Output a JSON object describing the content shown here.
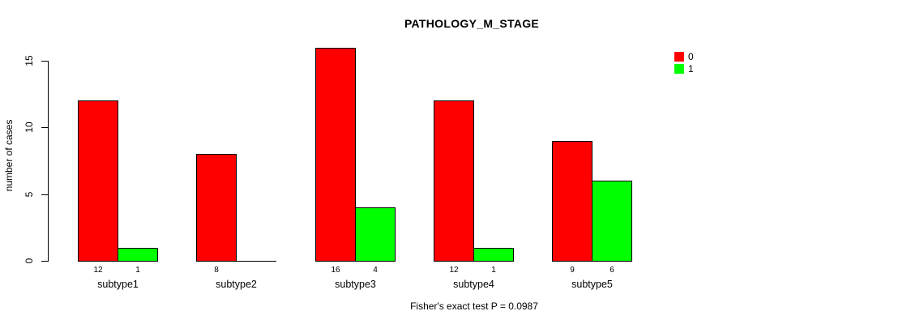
{
  "title": "PATHOLOGY_M_STAGE",
  "ylabel": "number of cases",
  "footer_note": "Fisher's exact test P = 0.0987",
  "colors": {
    "series0": "#FF0000",
    "series1": "#00FF00",
    "axis": "#000000",
    "background": "#FFFFFF"
  },
  "legend": {
    "items": [
      {
        "label": "0",
        "color": "#FF0000"
      },
      {
        "label": "1",
        "color": "#00FF00"
      }
    ]
  },
  "chart_data": {
    "type": "bar",
    "title": "PATHOLOGY_M_STAGE",
    "categories": [
      "subtype1",
      "subtype2",
      "subtype3",
      "subtype4",
      "subtype5"
    ],
    "series": [
      {
        "name": "0",
        "color": "#FF0000",
        "values": [
          12,
          8,
          16,
          12,
          9
        ]
      },
      {
        "name": "1",
        "color": "#00FF00",
        "values": [
          1,
          0,
          4,
          1,
          6
        ]
      }
    ],
    "bar_value_labels": [
      [
        "12",
        "1"
      ],
      [
        "8",
        ""
      ],
      [
        "16",
        "4"
      ],
      [
        "12",
        "1"
      ],
      [
        "9",
        "6"
      ]
    ],
    "xlabel": "",
    "ylabel": "number of cases",
    "yticks": [
      0,
      5,
      10,
      15
    ],
    "ylim": [
      0,
      16.6
    ],
    "grid": false,
    "legend_position": "top-right",
    "annotation": "Fisher's exact test P = 0.0987"
  }
}
